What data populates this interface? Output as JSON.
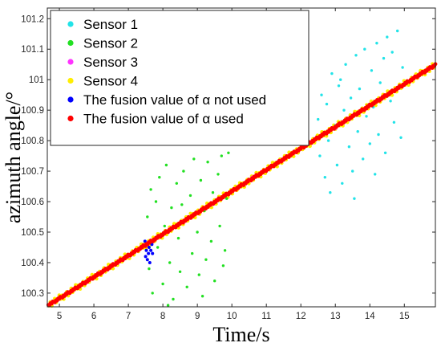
{
  "chart_data": {
    "type": "scatter",
    "title": "",
    "xlabel": "Time/s",
    "ylabel": "azimuth angle/°",
    "xlim": [
      4.65,
      15.9
    ],
    "ylim": [
      100.255,
      101.235
    ],
    "x_ticks": [
      "5",
      "6",
      "7",
      "8",
      "9",
      "10",
      "11",
      "12",
      "13",
      "14",
      "15"
    ],
    "y_ticks": [
      "100.3",
      "100.4",
      "100.5",
      "100.6",
      "100.7",
      "100.8",
      "100.9",
      "101",
      "101.1",
      "101.2"
    ],
    "legend_position": "top-left",
    "grid": false,
    "trend": {
      "slope": 0.0703,
      "intercept": 99.931
    },
    "series": [
      {
        "name": "Sensor 1",
        "color": "#22e3e8",
        "values": [
          {
            "x": 12.5,
            "y": 100.87
          },
          {
            "x": 12.55,
            "y": 100.75
          },
          {
            "x": 12.6,
            "y": 100.95
          },
          {
            "x": 12.7,
            "y": 100.68
          },
          {
            "x": 12.75,
            "y": 100.92
          },
          {
            "x": 12.8,
            "y": 100.8
          },
          {
            "x": 12.85,
            "y": 100.63
          },
          {
            "x": 12.9,
            "y": 101.02
          },
          {
            "x": 13.0,
            "y": 100.85
          },
          {
            "x": 13.05,
            "y": 100.72
          },
          {
            "x": 13.1,
            "y": 100.98
          },
          {
            "x": 13.2,
            "y": 100.66
          },
          {
            "x": 13.25,
            "y": 100.9
          },
          {
            "x": 13.3,
            "y": 101.05
          },
          {
            "x": 13.4,
            "y": 100.78
          },
          {
            "x": 13.45,
            "y": 100.94
          },
          {
            "x": 13.5,
            "y": 100.7
          },
          {
            "x": 13.6,
            "y": 101.08
          },
          {
            "x": 13.65,
            "y": 100.83
          },
          {
            "x": 13.7,
            "y": 100.97
          },
          {
            "x": 13.8,
            "y": 100.74
          },
          {
            "x": 13.85,
            "y": 101.1
          },
          {
            "x": 13.9,
            "y": 100.88
          },
          {
            "x": 14.0,
            "y": 100.79
          },
          {
            "x": 14.05,
            "y": 101.03
          },
          {
            "x": 14.1,
            "y": 100.91
          },
          {
            "x": 14.2,
            "y": 101.12
          },
          {
            "x": 14.25,
            "y": 100.82
          },
          {
            "x": 14.3,
            "y": 100.99
          },
          {
            "x": 14.4,
            "y": 101.07
          },
          {
            "x": 14.45,
            "y": 100.76
          },
          {
            "x": 14.5,
            "y": 101.14
          },
          {
            "x": 14.6,
            "y": 100.93
          },
          {
            "x": 14.65,
            "y": 101.09
          },
          {
            "x": 14.7,
            "y": 100.86
          },
          {
            "x": 14.8,
            "y": 101.16
          },
          {
            "x": 14.85,
            "y": 100.98
          },
          {
            "x": 14.9,
            "y": 100.81
          },
          {
            "x": 14.95,
            "y": 101.04
          },
          {
            "x": 13.15,
            "y": 101.0
          },
          {
            "x": 13.55,
            "y": 100.61
          },
          {
            "x": 14.15,
            "y": 100.69
          }
        ]
      },
      {
        "name": "Sensor 2",
        "color": "#22e022",
        "values": [
          {
            "x": 7.55,
            "y": 100.55
          },
          {
            "x": 7.6,
            "y": 100.38
          },
          {
            "x": 7.65,
            "y": 100.64
          },
          {
            "x": 7.7,
            "y": 100.3
          },
          {
            "x": 7.8,
            "y": 100.6
          },
          {
            "x": 7.85,
            "y": 100.45
          },
          {
            "x": 7.9,
            "y": 100.68
          },
          {
            "x": 8.0,
            "y": 100.33
          },
          {
            "x": 8.05,
            "y": 100.52
          },
          {
            "x": 8.1,
            "y": 100.72
          },
          {
            "x": 8.2,
            "y": 100.4
          },
          {
            "x": 8.25,
            "y": 100.58
          },
          {
            "x": 8.3,
            "y": 100.28
          },
          {
            "x": 8.4,
            "y": 100.66
          },
          {
            "x": 8.45,
            "y": 100.48
          },
          {
            "x": 8.5,
            "y": 100.37
          },
          {
            "x": 8.6,
            "y": 100.7
          },
          {
            "x": 8.65,
            "y": 100.54
          },
          {
            "x": 8.7,
            "y": 100.32
          },
          {
            "x": 8.8,
            "y": 100.62
          },
          {
            "x": 8.85,
            "y": 100.43
          },
          {
            "x": 8.9,
            "y": 100.74
          },
          {
            "x": 9.0,
            "y": 100.5
          },
          {
            "x": 9.05,
            "y": 100.36
          },
          {
            "x": 9.1,
            "y": 100.67
          },
          {
            "x": 9.2,
            "y": 100.57
          },
          {
            "x": 9.25,
            "y": 100.41
          },
          {
            "x": 9.3,
            "y": 100.73
          },
          {
            "x": 9.4,
            "y": 100.47
          },
          {
            "x": 9.45,
            "y": 100.63
          },
          {
            "x": 9.5,
            "y": 100.34
          },
          {
            "x": 9.6,
            "y": 100.69
          },
          {
            "x": 9.65,
            "y": 100.52
          },
          {
            "x": 9.7,
            "y": 100.75
          },
          {
            "x": 9.8,
            "y": 100.44
          },
          {
            "x": 9.85,
            "y": 100.61
          },
          {
            "x": 9.9,
            "y": 100.76
          },
          {
            "x": 8.15,
            "y": 100.26
          },
          {
            "x": 8.55,
            "y": 100.59
          },
          {
            "x": 9.15,
            "y": 100.29
          },
          {
            "x": 9.75,
            "y": 100.39
          }
        ]
      },
      {
        "name": "Sensor 3",
        "color": "#ff33ff",
        "values": [
          {
            "x": 5.3,
            "y": 100.3
          },
          {
            "x": 6.1,
            "y": 100.36
          },
          {
            "x": 7.0,
            "y": 100.42
          },
          {
            "x": 8.2,
            "y": 100.51
          },
          {
            "x": 9.4,
            "y": 100.59
          },
          {
            "x": 10.6,
            "y": 100.68
          },
          {
            "x": 11.8,
            "y": 100.76
          },
          {
            "x": 13.0,
            "y": 100.84
          },
          {
            "x": 14.2,
            "y": 100.93
          },
          {
            "x": 15.4,
            "y": 101.01
          }
        ]
      },
      {
        "name": "Sensor 4",
        "color": "#ffee00",
        "values": []
      },
      {
        "name": "The fusion value of α not used",
        "color": "#0000ff",
        "values": [
          {
            "x": 7.48,
            "y": 100.47
          },
          {
            "x": 7.5,
            "y": 100.42
          },
          {
            "x": 7.52,
            "y": 100.44
          },
          {
            "x": 7.55,
            "y": 100.41
          },
          {
            "x": 7.58,
            "y": 100.43
          },
          {
            "x": 7.6,
            "y": 100.45
          },
          {
            "x": 7.62,
            "y": 100.4
          },
          {
            "x": 7.65,
            "y": 100.44
          },
          {
            "x": 7.68,
            "y": 100.46
          },
          {
            "x": 7.7,
            "y": 100.43
          }
        ]
      },
      {
        "name": "The fusion value of α used",
        "color": "#ff0000",
        "values": []
      }
    ]
  }
}
